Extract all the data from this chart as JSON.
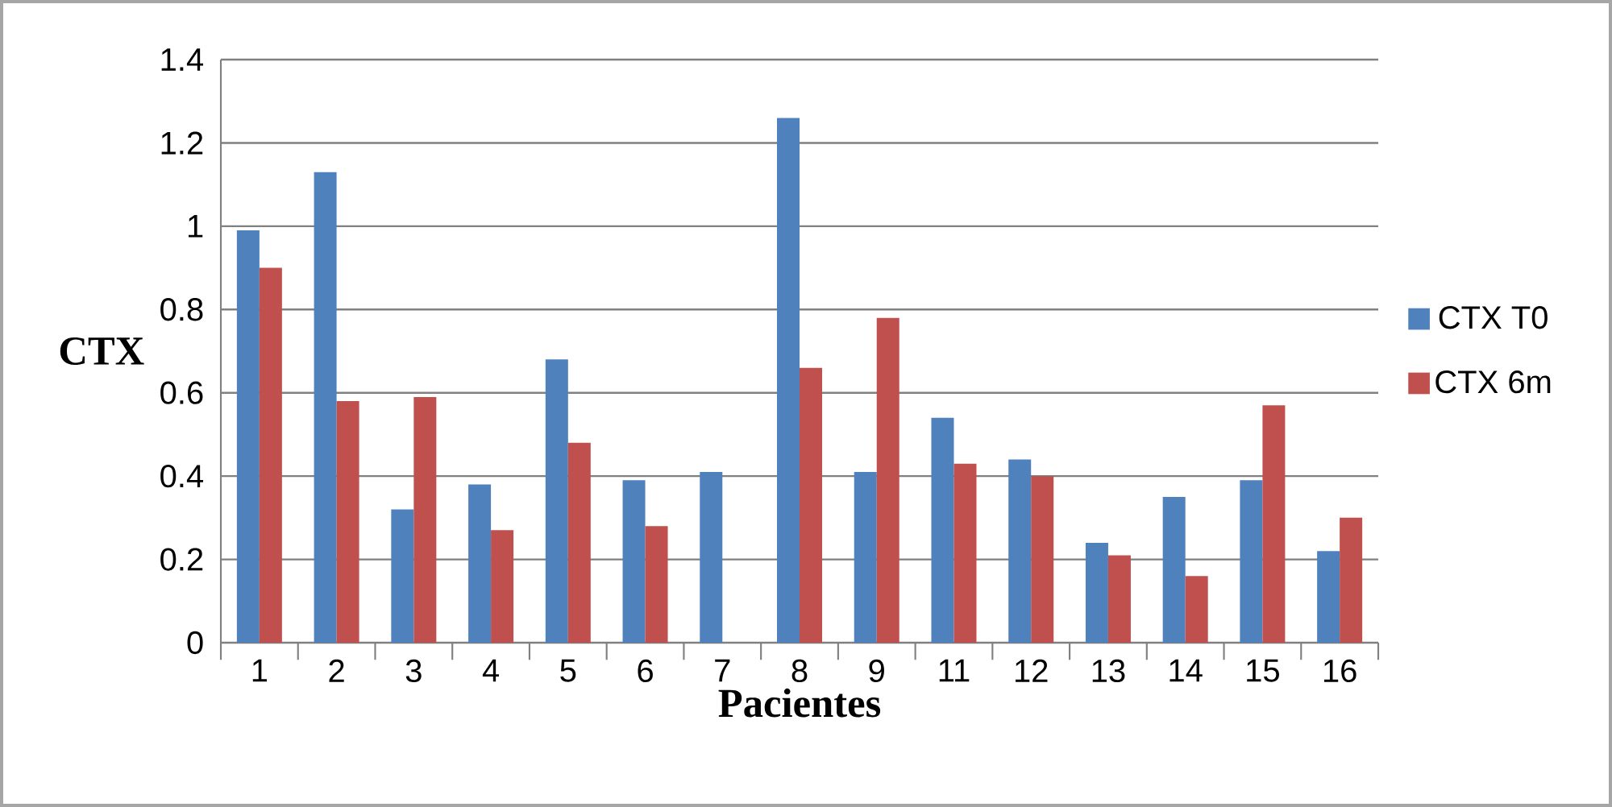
{
  "chart_data": {
    "type": "bar",
    "xlabel": "Pacientes",
    "ylabel": "CTX",
    "categories": [
      "1",
      "2",
      "3",
      "4",
      "5",
      "6",
      "7",
      "8",
      "9",
      "11",
      "12",
      "13",
      "14",
      "15",
      "16"
    ],
    "series": [
      {
        "name": "CTX T0",
        "color": "#4f81bd",
        "values": [
          0.99,
          1.13,
          0.32,
          0.38,
          0.68,
          0.39,
          0.41,
          1.26,
          0.41,
          0.54,
          0.44,
          0.24,
          0.35,
          0.39,
          0.22
        ]
      },
      {
        "name": "CTX 6m",
        "color": "#c0504d",
        "values": [
          0.9,
          0.58,
          0.59,
          0.27,
          0.48,
          0.28,
          null,
          0.66,
          0.78,
          0.43,
          0.4,
          0.21,
          0.16,
          0.57,
          0.3
        ]
      }
    ],
    "ylim": [
      0,
      1.4
    ],
    "yticks": [
      0,
      0.2,
      0.4,
      0.6,
      0.8,
      1,
      1.2,
      1.4
    ],
    "grid": "y",
    "legend": "right"
  }
}
